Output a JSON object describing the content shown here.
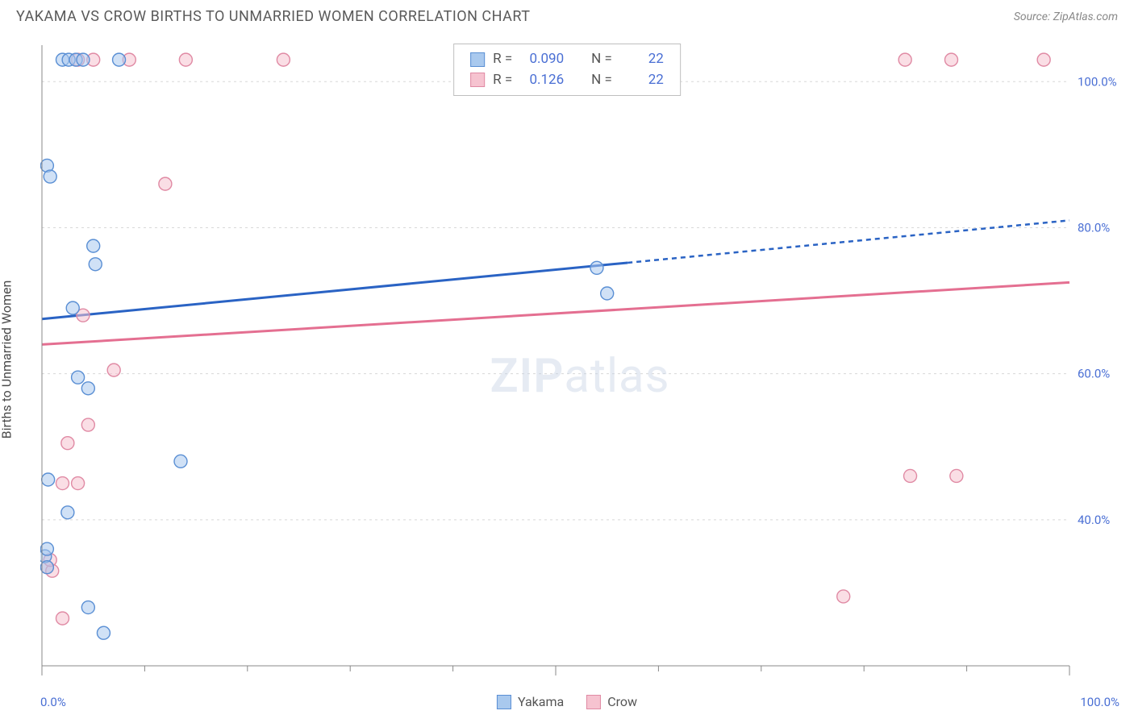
{
  "title": "YAKAMA VS CROW BIRTHS TO UNMARRIED WOMEN CORRELATION CHART",
  "source_label": "Source: ZipAtlas.com",
  "ylabel": "Births to Unmarried Women",
  "watermark": {
    "text_a": "ZIP",
    "text_b": "atlas"
  },
  "colors": {
    "grid": "#d8d8d8",
    "axis": "#888888",
    "tick_text": "#4a6fd4",
    "series1_fill": "#a9c9ee",
    "series1_stroke": "#5a8fd4",
    "series1_line": "#2a63c4",
    "series2_fill": "#f6c3d0",
    "series2_stroke": "#e08aa4",
    "series2_line": "#e46f91",
    "background": "#ffffff"
  },
  "chart": {
    "type": "scatter-with-trend",
    "xlim": [
      0,
      100
    ],
    "ylim": [
      20,
      105
    ],
    "y_gridlines": [
      40,
      60,
      80,
      100
    ],
    "y_tick_labels": [
      "40.0%",
      "60.0%",
      "80.0%",
      "100.0%"
    ],
    "x_tick_labels": {
      "min": "0.0%",
      "max": "100.0%"
    },
    "x_minor_ticks": [
      0,
      10,
      20,
      30,
      40,
      50,
      60,
      70,
      80,
      90,
      100
    ],
    "x_major_ticks": [
      0,
      50,
      100
    ],
    "marker_radius": 8,
    "marker_fill_opacity": 0.55,
    "trend_line_width": 3
  },
  "stats": {
    "series1": {
      "R": "0.090",
      "N": "22"
    },
    "series2": {
      "R": "0.126",
      "N": "22"
    }
  },
  "legend": {
    "series1": "Yakama",
    "series2": "Crow"
  },
  "series1": {
    "name": "Yakama",
    "points": [
      [
        0.5,
        88.5
      ],
      [
        0.8,
        87.0
      ],
      [
        3.0,
        69.0
      ],
      [
        0.3,
        35.0
      ],
      [
        0.5,
        33.5
      ],
      [
        5.0,
        77.5
      ],
      [
        5.2,
        75.0
      ],
      [
        3.5,
        59.5
      ],
      [
        4.5,
        58.0
      ],
      [
        0.6,
        45.5
      ],
      [
        13.5,
        48.0
      ],
      [
        2.5,
        41.0
      ],
      [
        0.5,
        36.0
      ],
      [
        4.5,
        28.0
      ],
      [
        6.0,
        24.5
      ],
      [
        2.0,
        103.0
      ],
      [
        2.6,
        103.0
      ],
      [
        3.3,
        103.0
      ],
      [
        4.0,
        103.0
      ],
      [
        7.5,
        103.0
      ],
      [
        54.0,
        74.5
      ],
      [
        55.0,
        71.0
      ]
    ],
    "trend": {
      "y_at_x0": 67.5,
      "solid_end_x": 57,
      "y_at_x57": 75.2,
      "y_at_x100": 81.0
    }
  },
  "series2": {
    "name": "Crow",
    "points": [
      [
        2.5,
        50.5
      ],
      [
        4.5,
        53.0
      ],
      [
        7.0,
        60.5
      ],
      [
        2.0,
        45.0
      ],
      [
        3.5,
        45.0
      ],
      [
        0.5,
        33.5
      ],
      [
        1.0,
        33.0
      ],
      [
        0.8,
        34.5
      ],
      [
        2.0,
        26.5
      ],
      [
        12.0,
        86.0
      ],
      [
        4.0,
        68.0
      ],
      [
        78.0,
        29.5
      ],
      [
        84.5,
        46.0
      ],
      [
        89.0,
        46.0
      ],
      [
        3.5,
        103.0
      ],
      [
        5.0,
        103.0
      ],
      [
        8.5,
        103.0
      ],
      [
        14.0,
        103.0
      ],
      [
        23.5,
        103.0
      ],
      [
        84.0,
        103.0
      ],
      [
        88.5,
        103.0
      ],
      [
        97.5,
        103.0
      ]
    ],
    "trend": {
      "y_at_x0": 64.0,
      "y_at_x100": 72.5
    }
  }
}
